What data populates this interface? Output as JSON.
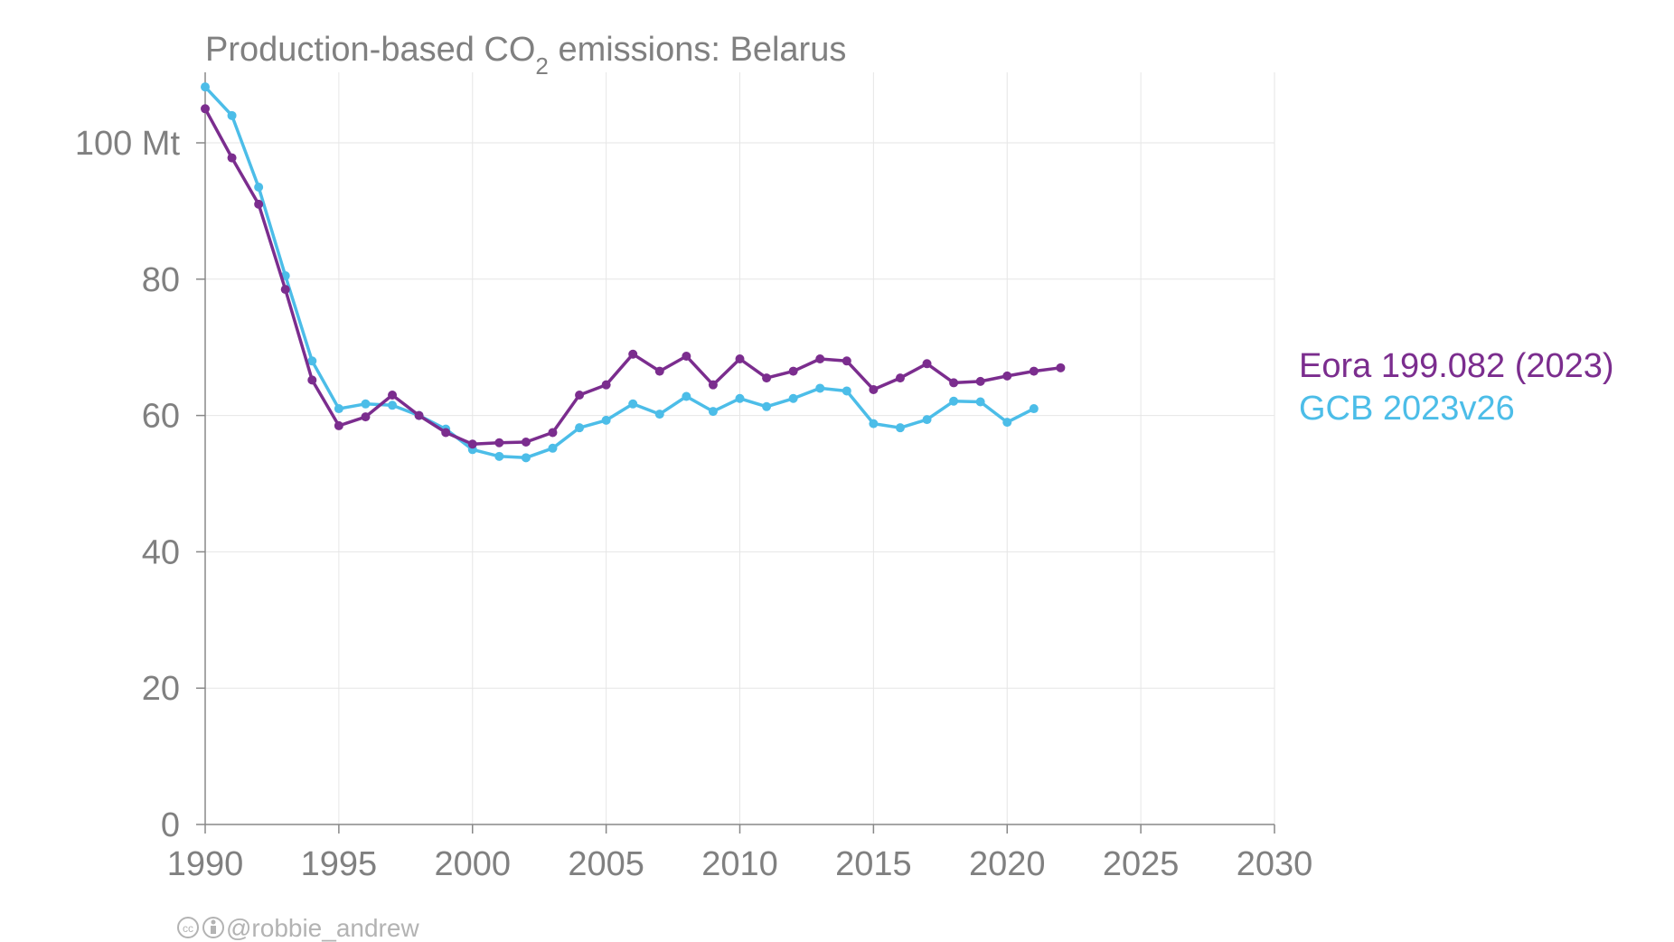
{
  "chart_data": {
    "type": "line",
    "title": "Production-based CO",
    "title_sub": "2",
    "title_rest": " emissions: Belarus",
    "xlim": [
      1990,
      2030
    ],
    "ylim": [
      0,
      110
    ],
    "x_ticks": [
      1990,
      1995,
      2000,
      2005,
      2010,
      2015,
      2020,
      2025,
      2030
    ],
    "x_tick_labels": [
      "1990",
      "1995",
      "2000",
      "2005",
      "2010",
      "2015",
      "2020",
      "2025",
      "2030"
    ],
    "y_ticks": [
      0,
      20,
      40,
      60,
      80,
      100
    ],
    "y_tick_labels": [
      "0",
      "20",
      "40",
      "60",
      "80",
      "100 Mt"
    ],
    "grid": true,
    "legend_placement": "right",
    "series": [
      {
        "name": "Eora 199.082 (2023)",
        "color": "#7b2d8e",
        "x": [
          1990,
          1991,
          1992,
          1993,
          1994,
          1995,
          1996,
          1997,
          1998,
          1999,
          2000,
          2001,
          2002,
          2003,
          2004,
          2005,
          2006,
          2007,
          2008,
          2009,
          2010,
          2011,
          2012,
          2013,
          2014,
          2015,
          2016,
          2017,
          2018,
          2019,
          2020,
          2021,
          2022
        ],
        "y": [
          105,
          97.8,
          91,
          78.5,
          65.2,
          58.5,
          59.8,
          63,
          60,
          57.5,
          55.8,
          56,
          56.1,
          57.5,
          63,
          64.5,
          69,
          66.5,
          68.7,
          64.5,
          68.3,
          65.5,
          66.5,
          68.3,
          68,
          63.8,
          65.5,
          67.6,
          64.8,
          65,
          65.8,
          66.5,
          67
        ]
      },
      {
        "name": "GCB 2023v26",
        "color": "#4cbde8",
        "x": [
          1990,
          1991,
          1992,
          1993,
          1994,
          1995,
          1996,
          1997,
          1998,
          1999,
          2000,
          2001,
          2002,
          2003,
          2004,
          2005,
          2006,
          2007,
          2008,
          2009,
          2010,
          2011,
          2012,
          2013,
          2014,
          2015,
          2016,
          2017,
          2018,
          2019,
          2020,
          2021
        ],
        "y": [
          108.2,
          104,
          93.5,
          80.5,
          68,
          61,
          61.7,
          61.5,
          60,
          58,
          55,
          54,
          53.8,
          55.2,
          58.2,
          59.3,
          61.7,
          60.2,
          62.8,
          60.6,
          62.5,
          61.3,
          62.5,
          64,
          63.6,
          58.8,
          58.2,
          59.4,
          62.1,
          62,
          59,
          61
        ]
      }
    ]
  },
  "credit": {
    "cc_icon": "cc-icon",
    "by_icon": "by-icon",
    "handle": "@robbie_andrew"
  }
}
